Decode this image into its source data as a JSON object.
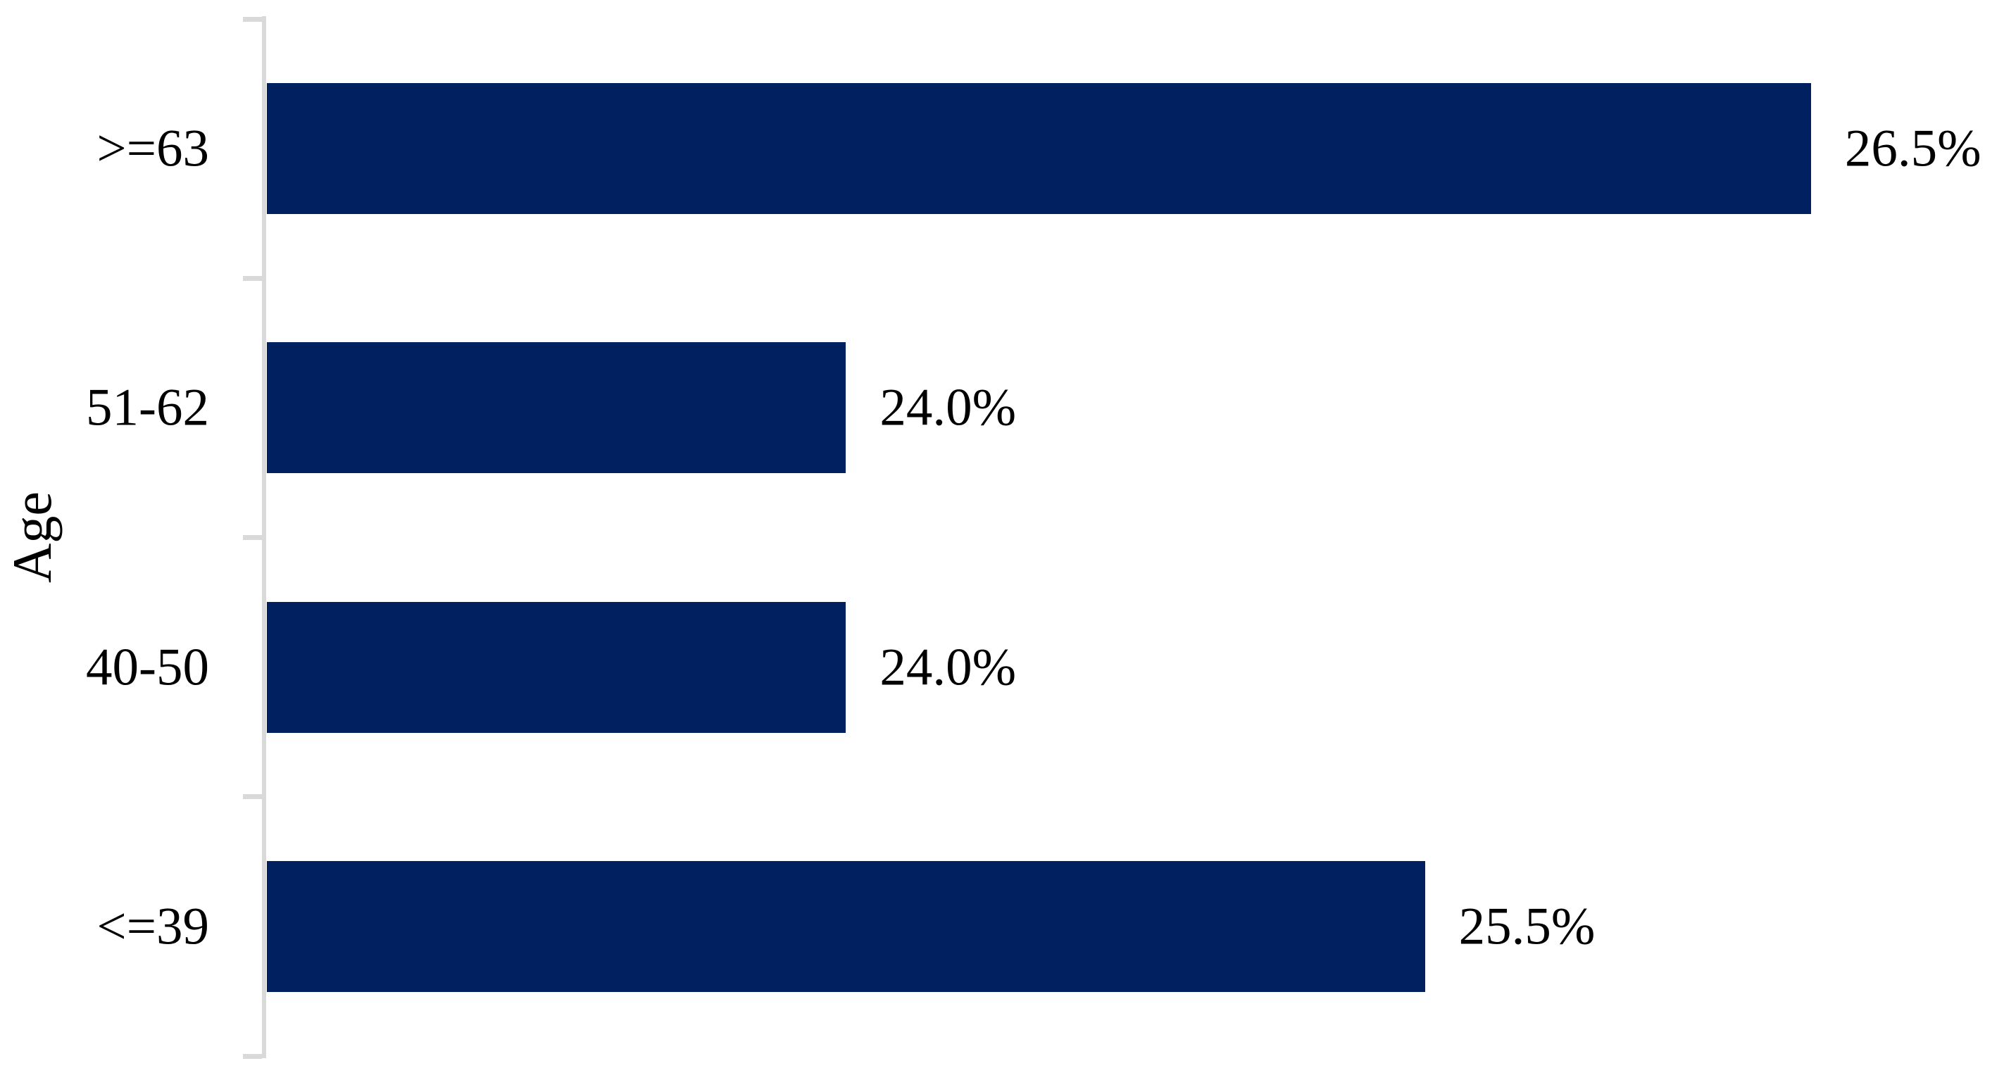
{
  "chart_data": {
    "type": "bar",
    "orientation": "horizontal",
    "title": "",
    "xlabel": "",
    "ylabel": "Age",
    "categories": [
      ">=63",
      "51-62",
      "40-50",
      "<=39"
    ],
    "values": [
      26.5,
      24.0,
      24.0,
      25.5
    ],
    "data_labels": [
      "26.5%",
      "24.0%",
      "24.0%",
      "25.5%"
    ],
    "unit": "%",
    "xlim": [
      22.5,
      27
    ],
    "grid": false,
    "legend": false,
    "value_label_position": "outside-end",
    "bar_color": "#002060",
    "axis_color": "#d9d9d9",
    "text_color": "#000000",
    "background_color": "#ffffff"
  }
}
